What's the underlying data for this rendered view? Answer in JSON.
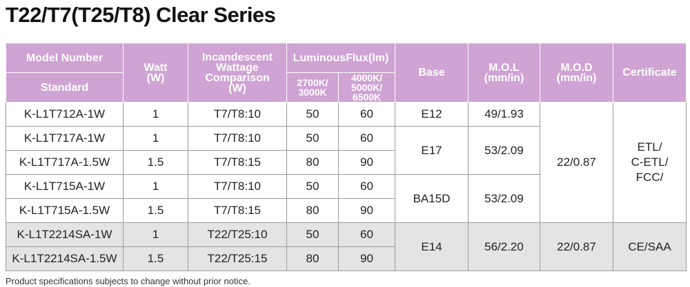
{
  "title": "T22/T7(T25/T8) Clear Series",
  "header": {
    "model_number": "Model Number",
    "standard": "Standard",
    "watt": "Watt\n(W)",
    "incandescent": "Incandescent\nWattage\nComparison\n(W)",
    "luminous_flux": "LuminousFlux(lm)",
    "flux_warm": "2700K/\n3000K",
    "flux_cool": "4000K/\n5000K/\n6500K",
    "base": "Base",
    "mol": "M.O.L\n(mm/in)",
    "mod": "M.O.D\n(mm/in)",
    "certificate": "Certificate"
  },
  "rows": [
    {
      "model": "K-L1T712A-1W",
      "watt": 1,
      "incandescent": "T7/T8:10",
      "flux_warm": 50,
      "flux_cool": 60
    },
    {
      "model": "K-L1T717A-1W",
      "watt": 1,
      "incandescent": "T7/T8:10",
      "flux_warm": 50,
      "flux_cool": 60
    },
    {
      "model": "K-L1T717A-1.5W",
      "watt": 1.5,
      "incandescent": "T7/T8:15",
      "flux_warm": 80,
      "flux_cool": 90
    },
    {
      "model": "K-L1T715A-1W",
      "watt": 1,
      "incandescent": "T7/T8:10",
      "flux_warm": 50,
      "flux_cool": 60
    },
    {
      "model": "K-L1T715A-1.5W",
      "watt": 1.5,
      "incandescent": "T7/T8:15",
      "flux_warm": 80,
      "flux_cool": 90
    },
    {
      "model": "K-L1T2214SA-1W",
      "watt": 1,
      "incandescent": "T22/T25:10",
      "flux_warm": 50,
      "flux_cool": 60
    },
    {
      "model": "K-L1T2214SA-1.5W",
      "watt": 1.5,
      "incandescent": "T22/T25:15",
      "flux_warm": 80,
      "flux_cool": 90
    }
  ],
  "base": [
    "E12",
    "E17",
    "BA15D",
    "E14"
  ],
  "mol": [
    "49/1.93",
    "53/2.09",
    "53/2.09",
    "56/2.20"
  ],
  "mod": [
    "22/0.87",
    "22/0.87"
  ],
  "certificate": [
    "ETL/\nC-ETL/\nFCC/",
    "CE/SAA"
  ],
  "footnote": "Product specifications subjects to change without prior notice."
}
